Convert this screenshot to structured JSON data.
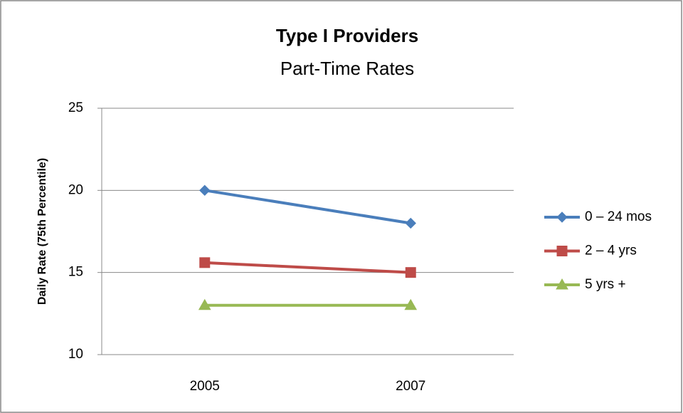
{
  "chart_data": {
    "type": "line",
    "title": "Type I Providers",
    "subtitle": "Part-Time Rates",
    "y_label": "Daily Rate (75th Percentile)",
    "categories": [
      "2005",
      "2007"
    ],
    "series": [
      {
        "name": "0 – 24 mos",
        "color": "#4a7ebb",
        "marker": "diamond",
        "values": [
          20,
          18
        ]
      },
      {
        "name": "2 – 4 yrs",
        "color": "#be4b48",
        "marker": "square",
        "values": [
          15.6,
          15
        ]
      },
      {
        "name": "5 yrs +",
        "color": "#98b954",
        "marker": "triangle",
        "values": [
          13,
          13
        ]
      }
    ],
    "ylim": [
      10,
      25
    ],
    "yticks": [
      10,
      15,
      20,
      25
    ],
    "grid": true,
    "legend": "right"
  }
}
